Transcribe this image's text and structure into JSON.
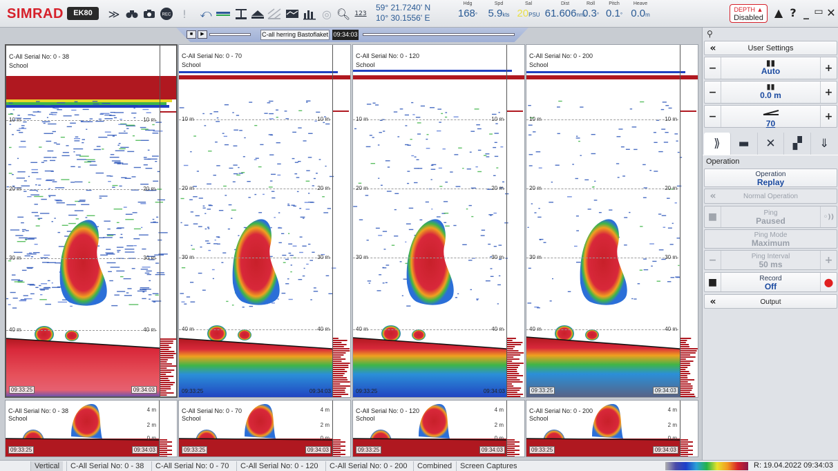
{
  "toolbar": {
    "brand": "SIMRAD",
    "model": "EK80",
    "icons": [
      "chevron-down-icon",
      "binoculars-icon",
      "camera-icon",
      "record-icon",
      "warning-icon",
      "cursor-icon",
      "horizontal-line-icon",
      "bottom-line-icon",
      "layers-icon",
      "grid-icon",
      "echogram-icon",
      "bar-chart-icon",
      "target-icon",
      "zoom-icon",
      "numeric-icon"
    ],
    "numeric_icon_label": "123",
    "record_icon_label": "REC",
    "latitude": "59° 21.7240' N",
    "longitude": "10° 30.1556' E",
    "readouts": [
      {
        "label": "Hdg",
        "value": "168",
        "unit": "°"
      },
      {
        "label": "Spd",
        "value": "5.9",
        "unit": "kts"
      },
      {
        "label": "Sal",
        "value": "20",
        "unit": "PSU"
      },
      {
        "label": "Dist",
        "value": "61.606",
        "unit": "nmi"
      },
      {
        "label": "Roll",
        "value": "0.3",
        "unit": "°"
      },
      {
        "label": "Pitch",
        "value": "0.1",
        "unit": "°"
      },
      {
        "label": "Heave",
        "value": "0.0",
        "unit": "m"
      }
    ],
    "depth_title": "DEPTH",
    "depth_status": "Disabled",
    "window_buttons": [
      "alert-icon",
      "help-icon",
      "minimize-icon",
      "maximize-icon",
      "close-icon"
    ]
  },
  "replay": {
    "file_label": "C-all herring Bastoflaket",
    "time": "09:34:03"
  },
  "echograms": [
    {
      "title": "C-All Serial No: 0 - 38",
      "school": "School",
      "t_start": "09:33:25",
      "t_end": "09:34:03"
    },
    {
      "title": "C-All Serial No: 0 - 70",
      "school": "School",
      "t_start": "09:33:25",
      "t_end": "09:34:03"
    },
    {
      "title": "C-All Serial No: 0 - 120",
      "school": "School",
      "t_start": "09:33:25",
      "t_end": "09:34:03"
    },
    {
      "title": "C-All Serial No: 0 - 200",
      "school": "School",
      "t_start": "09:33:25",
      "t_end": "09:34:03"
    }
  ],
  "depth_labels": [
    "10 m",
    "20 m",
    "30 m",
    "40 m"
  ],
  "zoom_depth_labels": [
    "4 m",
    "2 m",
    "0 m"
  ],
  "sidebar": {
    "user_settings": "User Settings",
    "gain_value": "Auto",
    "range_start": "0.0 m",
    "tvg_value": "70",
    "tabs": [
      "operation-tab-icon",
      "display-tab-icon",
      "setup-tab-icon",
      "windows-tab-icon",
      "download-tab-icon"
    ],
    "section_title": "Operation",
    "operation": {
      "label": "Operation",
      "value": "Replay"
    },
    "normal_operation": "Normal Operation",
    "ping": {
      "label": "Ping",
      "value": "Paused"
    },
    "ping_mode": {
      "label": "Ping Mode",
      "value": "Maximum"
    },
    "ping_interval": {
      "label": "Ping Interval",
      "value": "50 ms"
    },
    "record": {
      "label": "Record",
      "value": "Off"
    },
    "output": "Output"
  },
  "bottom_tabs": [
    "Vertical",
    "C-All Serial No: 0 - 38",
    "C-All Serial No: 0 - 70",
    "C-All Serial No: 0 - 120",
    "C-All Serial No: 0 - 200",
    "Combined",
    "Screen Captures"
  ],
  "status": {
    "datetime": "R: 19.04.2022  09:34:03"
  }
}
